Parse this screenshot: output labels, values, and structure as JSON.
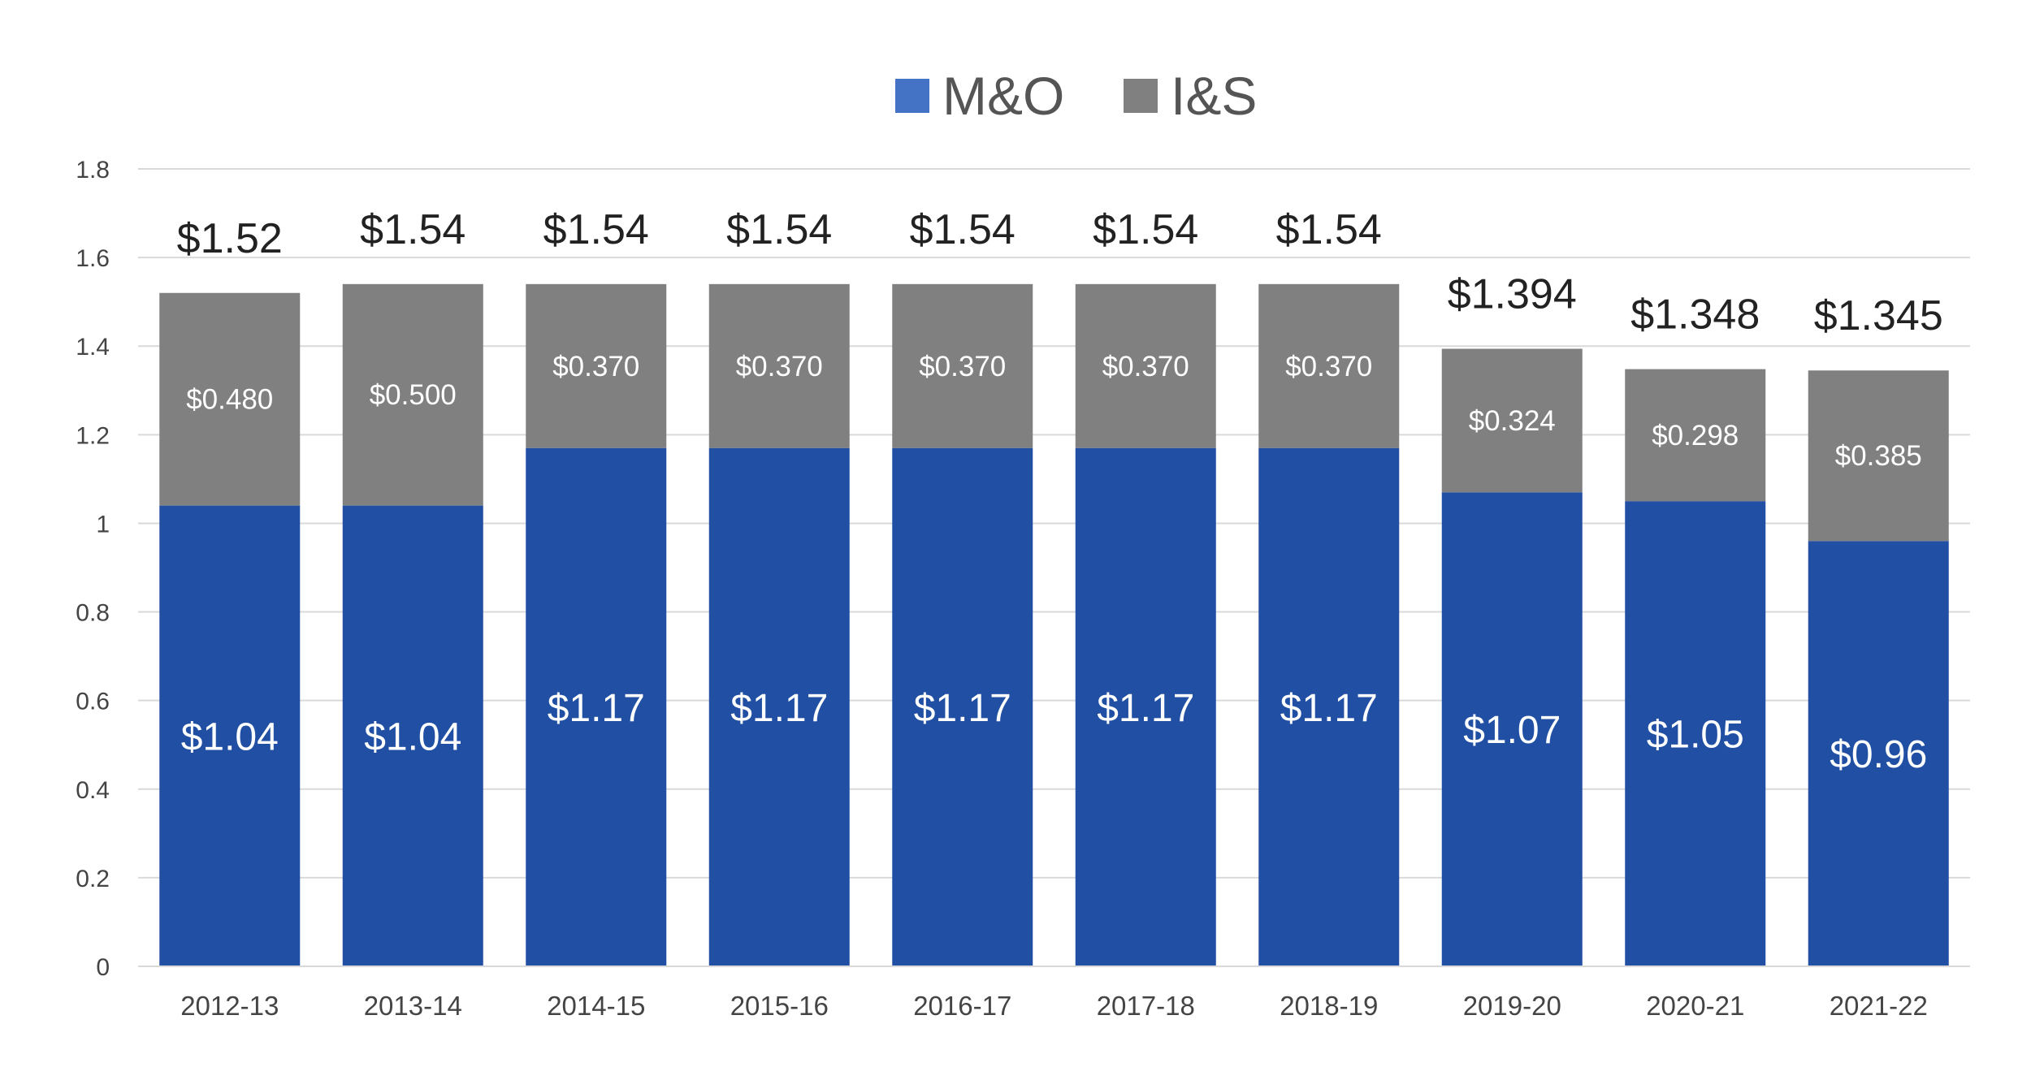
{
  "colors": {
    "mo": "#214FA3",
    "mo_legend": "#4472C4",
    "is": "#808080",
    "grid": "#D9D9D9"
  },
  "legend": [
    {
      "label": "M&O"
    },
    {
      "label": "I&S"
    }
  ],
  "chart_data": {
    "type": "bar",
    "stacked": true,
    "categories": [
      "2012-13",
      "2013-14",
      "2014-15",
      "2015-16",
      "2016-17",
      "2017-18",
      "2018-19",
      "2019-20",
      "2020-21",
      "2021-22"
    ],
    "series": [
      {
        "name": "M&O",
        "values": [
          1.04,
          1.04,
          1.17,
          1.17,
          1.17,
          1.17,
          1.17,
          1.07,
          1.05,
          0.96
        ],
        "labels": [
          "$1.04",
          "$1.04",
          "$1.17",
          "$1.17",
          "$1.17",
          "$1.17",
          "$1.17",
          "$1.07",
          "$1.05",
          "$0.96"
        ]
      },
      {
        "name": "I&S",
        "values": [
          0.48,
          0.5,
          0.37,
          0.37,
          0.37,
          0.37,
          0.37,
          0.324,
          0.298,
          0.385
        ],
        "labels": [
          "$0.480",
          "$0.500",
          "$0.370",
          "$0.370",
          "$0.370",
          "$0.370",
          "$0.370",
          "$0.324",
          "$0.298",
          "$0.385"
        ]
      }
    ],
    "totals": [
      1.52,
      1.54,
      1.54,
      1.54,
      1.54,
      1.54,
      1.54,
      1.394,
      1.348,
      1.345
    ],
    "total_labels": [
      "$1.52",
      "$1.54",
      "$1.54",
      "$1.54",
      "$1.54",
      "$1.54",
      "$1.54",
      "$1.394",
      "$1.348",
      "$1.345"
    ],
    "ylim": [
      0,
      1.8
    ],
    "yticks": [
      "0",
      "0.2",
      "0.4",
      "0.6",
      "0.8",
      "1",
      "1.2",
      "1.4",
      "1.6",
      "1.8"
    ],
    "grid": true,
    "legend_position": "top-center"
  }
}
